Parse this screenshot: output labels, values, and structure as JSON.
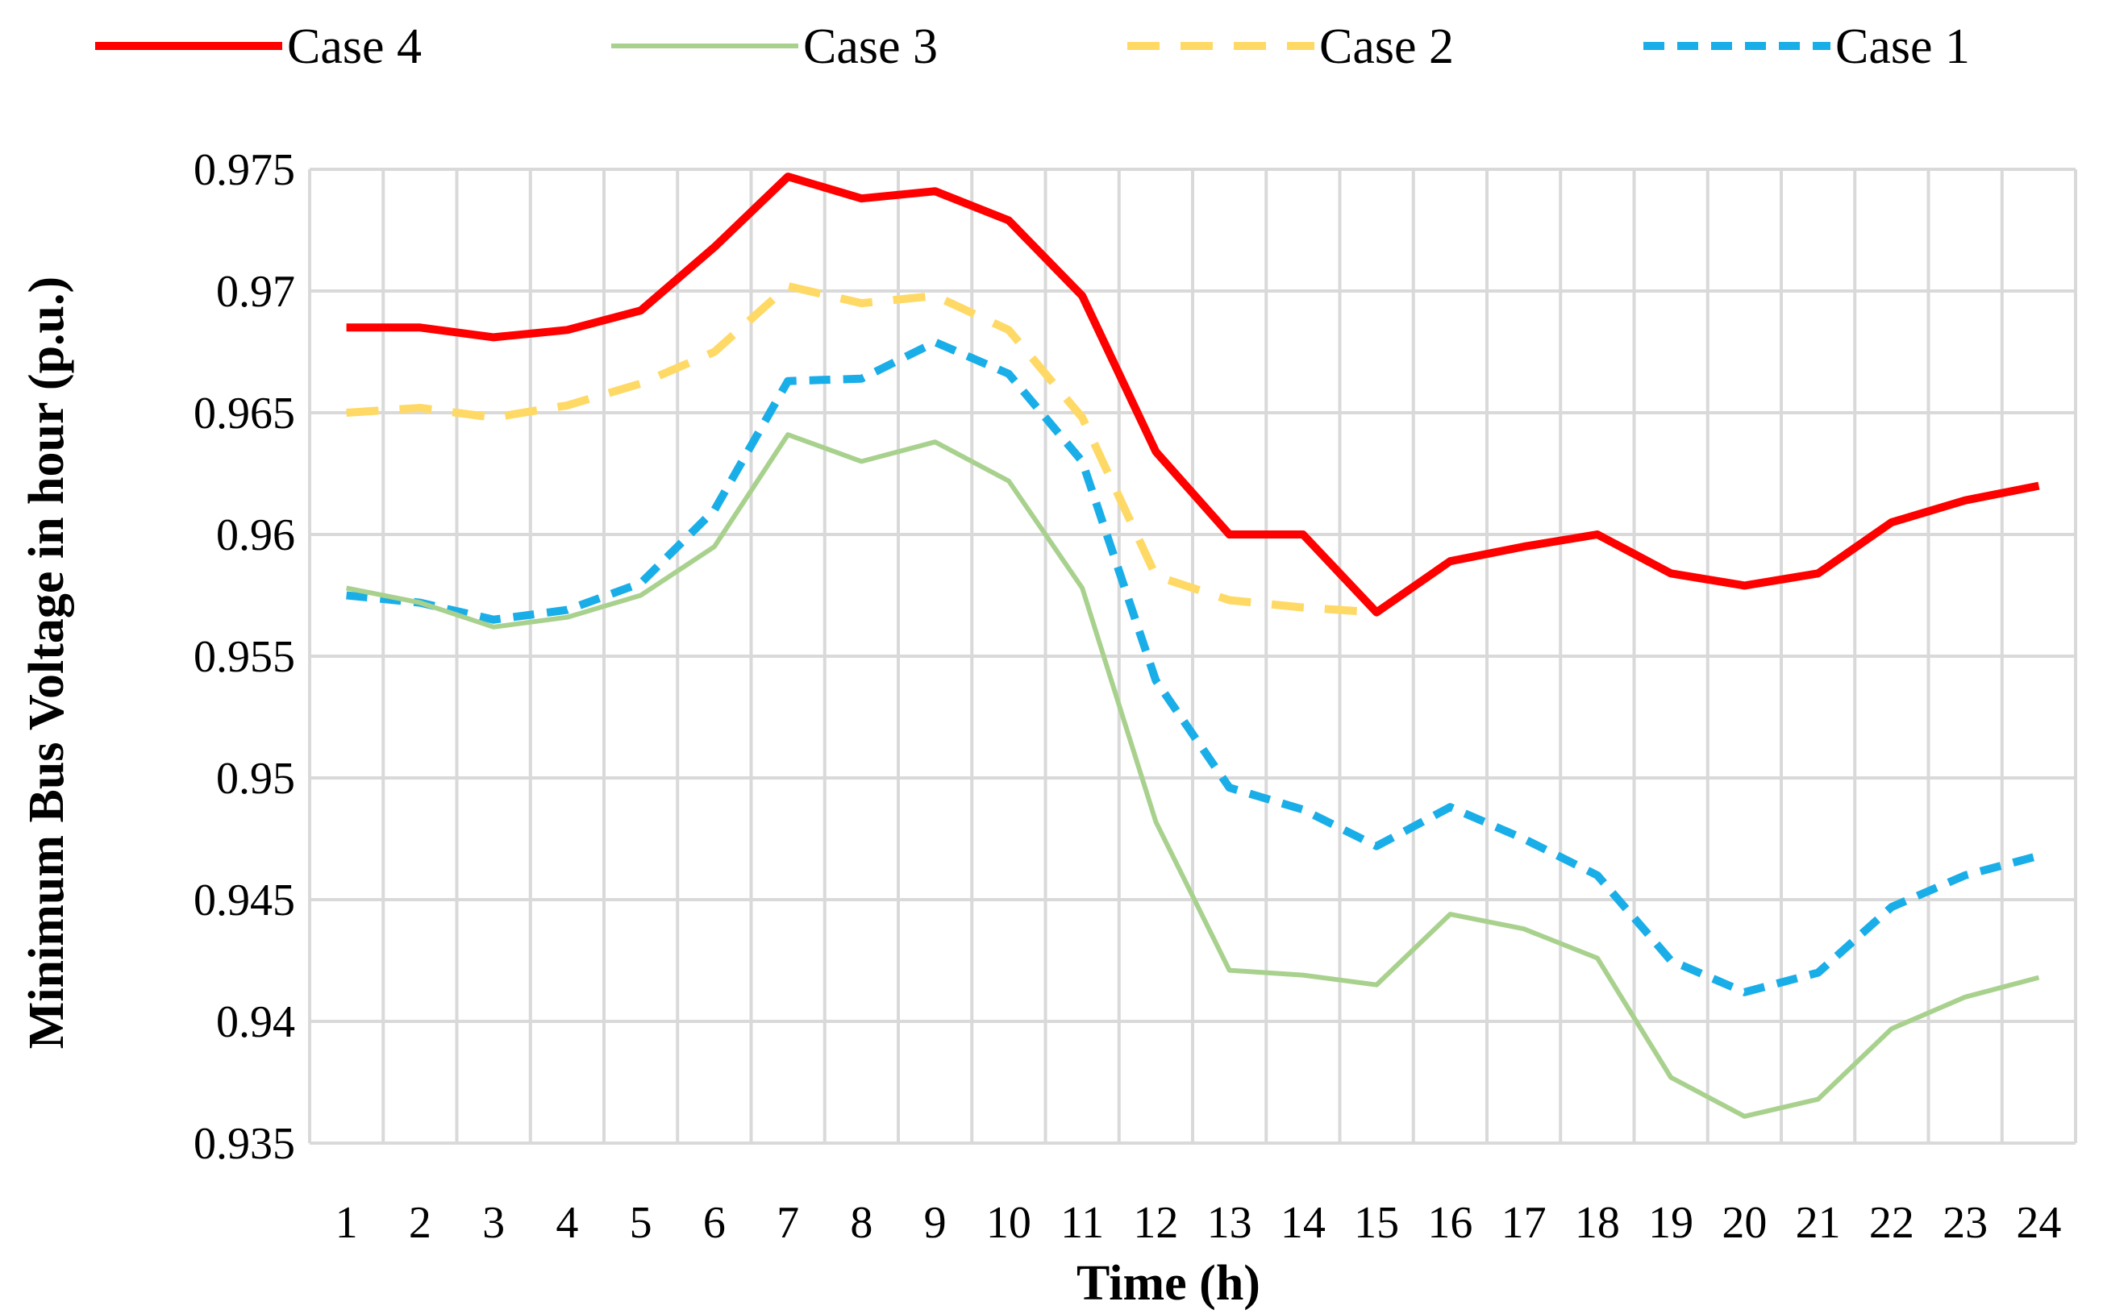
{
  "chart_data": {
    "type": "line",
    "title": "",
    "xlabel": "Time (h)",
    "ylabel": "Minimum Bus Voltage in hour (p.u.)",
    "categories": [
      "1",
      "2",
      "3",
      "4",
      "5",
      "6",
      "7",
      "8",
      "9",
      "10",
      "11",
      "12",
      "13",
      "14",
      "15",
      "16",
      "17",
      "18",
      "19",
      "20",
      "21",
      "22",
      "23",
      "24"
    ],
    "ylim": [
      0.935,
      0.975
    ],
    "yticks": [
      "0.935",
      "0.94",
      "0.945",
      "0.95",
      "0.955",
      "0.96",
      "0.965",
      "0.97",
      "0.975"
    ],
    "grid": true,
    "legend_position": "top",
    "legend_order": [
      "Case 4",
      "Case 3",
      "Case 2",
      "Case 1"
    ],
    "series": [
      {
        "name": "Case 1",
        "color": "#1aaee8",
        "style": "dashed",
        "values": [
          0.9575,
          0.9572,
          0.9565,
          0.9569,
          0.958,
          0.961,
          0.9663,
          0.9664,
          0.9679,
          0.9666,
          0.963,
          0.954,
          0.9496,
          0.9487,
          0.9472,
          0.9488,
          0.9475,
          0.946,
          0.9425,
          0.9412,
          0.942,
          0.9447,
          0.946,
          0.9468
        ]
      },
      {
        "name": "Case 2",
        "color": "#ffd966",
        "style": "dashed",
        "values": [
          0.965,
          0.9652,
          0.9648,
          0.9653,
          0.9662,
          0.9675,
          0.9702,
          0.9695,
          0.9698,
          0.9684,
          0.9648,
          0.9583,
          0.9573,
          0.957,
          0.9568,
          0.9589,
          0.9595,
          0.96,
          0.9584,
          0.9579,
          0.9584,
          0.9605,
          0.9614,
          0.962
        ]
      },
      {
        "name": "Case 3",
        "color": "#a9d18e",
        "style": "solid",
        "values": [
          0.9578,
          0.9572,
          0.9562,
          0.9566,
          0.9575,
          0.9595,
          0.9641,
          0.963,
          0.9638,
          0.9622,
          0.9578,
          0.9482,
          0.9421,
          0.9419,
          0.9415,
          0.9444,
          0.9438,
          0.9426,
          0.9377,
          0.9361,
          0.9368,
          0.9397,
          0.941,
          0.9418
        ]
      },
      {
        "name": "Case 4",
        "color": "#ff0000",
        "style": "solid",
        "values": [
          0.9685,
          0.9685,
          0.9681,
          0.9684,
          0.9692,
          0.9718,
          0.9747,
          0.9738,
          0.9741,
          0.9729,
          0.9698,
          0.9634,
          0.96,
          0.96,
          0.9568,
          0.9589,
          0.9595,
          0.96,
          0.9584,
          0.9579,
          0.9584,
          0.9605,
          0.9614,
          0.962
        ]
      }
    ]
  }
}
